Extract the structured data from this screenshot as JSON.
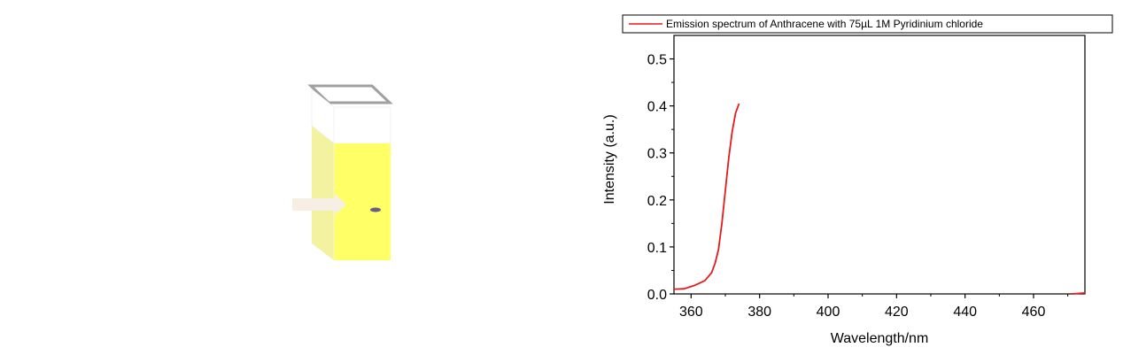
{
  "illustration": {
    "cuvette_fill_color": "#ffff66",
    "cuvette_side_color": "#f2f2a0",
    "arrow_color": "#f7efe4",
    "spot_color": "#6b5c86"
  },
  "chart_data": {
    "type": "line",
    "xlabel": "Wavelength/nm",
    "ylabel": "Intensity (a.u.)",
    "xlim": [
      355,
      475
    ],
    "ylim": [
      0.0,
      0.55
    ],
    "xticks": [
      360,
      380,
      400,
      420,
      440,
      460
    ],
    "yticks": [
      0.0,
      0.1,
      0.2,
      0.3,
      0.4,
      0.5
    ],
    "ytick_labels": [
      "0.0",
      "0.1",
      "0.2",
      "0.3",
      "0.4",
      "0.5"
    ],
    "grid": false,
    "legend_position": "top",
    "series": [
      {
        "name": "Emission spectrum of Anthracene with 75µL 1M Pyridinium chloride",
        "color": "#e41a1c",
        "segments": [
          {
            "x": [
              355,
              358,
              361,
              364,
              366,
              367,
              368,
              369,
              370,
              371,
              372,
              373,
              374
            ],
            "y": [
              0.01,
              0.011,
              0.018,
              0.028,
              0.045,
              0.065,
              0.095,
              0.15,
              0.22,
              0.29,
              0.345,
              0.385,
              0.405
            ]
          },
          {
            "x": [
              471,
              473,
              475
            ],
            "y": [
              0.0,
              0.001,
              0.002
            ]
          }
        ]
      }
    ]
  }
}
